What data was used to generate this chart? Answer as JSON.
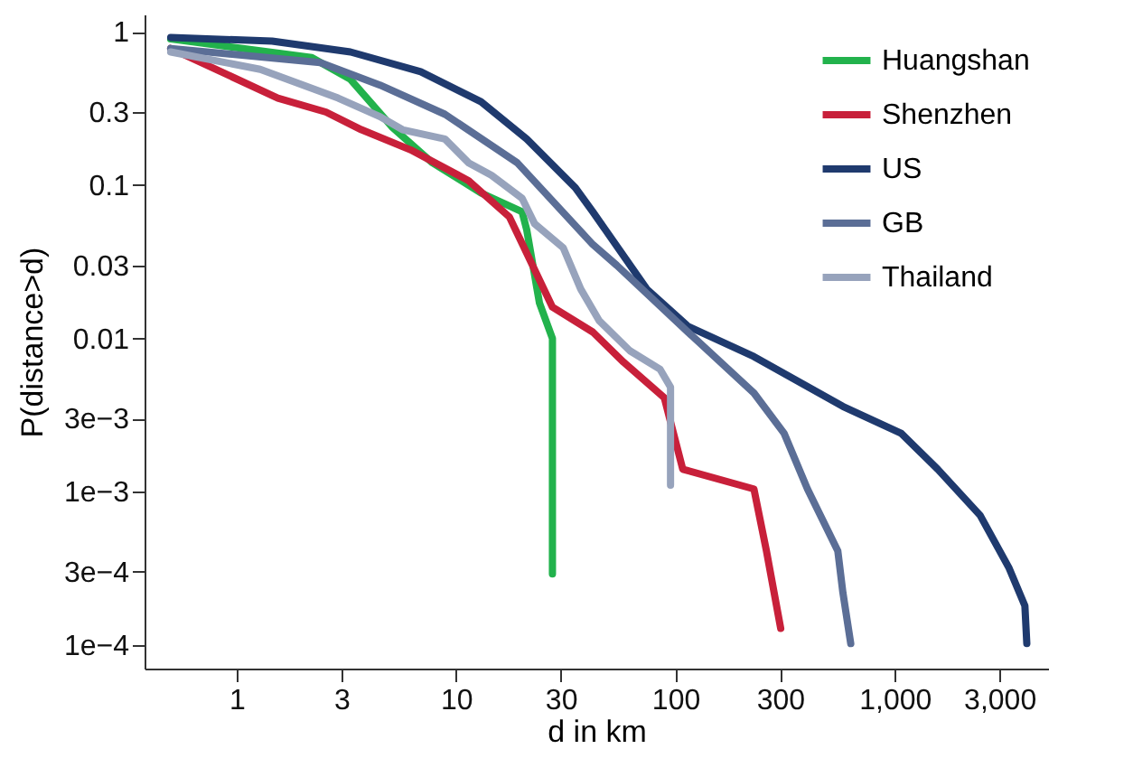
{
  "chart_data": {
    "type": "line",
    "xlabel": "d in km",
    "ylabel": "P(distance>d)",
    "log": "xy",
    "grid": false,
    "legend": "top right",
    "line_style": "solid",
    "xlim": [
      0.38,
      5000
    ],
    "ylim": [
      7e-05,
      1.3
    ],
    "xticks": [
      1,
      3,
      10,
      30,
      100,
      300,
      {
        "value": 1000,
        "label": "1,000"
      },
      {
        "value": 3000,
        "label": "3,000"
      }
    ],
    "yticks": [
      1,
      0.3,
      0.1,
      0.03,
      0.01,
      {
        "value": 0.003,
        "label": "3e−3"
      },
      {
        "value": 0.001,
        "label": "1e−3"
      },
      {
        "value": 0.0003,
        "label": "3e−4"
      },
      {
        "value": 0.0001,
        "label": "1e−4"
      }
    ],
    "series": [
      {
        "name": "Huangshan",
        "color": "#22b24c",
        "x": [
          0.5,
          2.2,
          3.3,
          5.1,
          7.8,
          13,
          20,
          21,
          24,
          27.5,
          27.5
        ],
        "values": [
          0.9,
          0.68,
          0.49,
          0.24,
          0.14,
          0.089,
          0.067,
          0.051,
          0.017,
          0.01,
          0.00029
        ]
      },
      {
        "name": "Shenzhen",
        "color": "#c8203a",
        "x": [
          0.5,
          1.54,
          2.55,
          3.7,
          6.2,
          11.4,
          17.5,
          21,
          27.5,
          42,
          58,
          89,
          108,
          228,
          260,
          302
        ],
        "values": [
          0.78,
          0.37,
          0.3,
          0.23,
          0.17,
          0.107,
          0.062,
          0.036,
          0.016,
          0.011,
          0.007,
          0.0041,
          0.0014,
          0.00104,
          0.00041,
          0.000128
        ]
      },
      {
        "name": "US",
        "color": "#1f3a6e",
        "x": [
          0.5,
          1.45,
          3.3,
          6.9,
          13,
          21,
          35,
          42,
          48,
          74,
          114,
          228,
          580,
          1070,
          1570,
          2450,
          3310,
          3920,
          4000
        ],
        "values": [
          0.92,
          0.87,
          0.74,
          0.55,
          0.35,
          0.2,
          0.096,
          0.067,
          0.051,
          0.021,
          0.012,
          0.0076,
          0.0036,
          0.0024,
          0.0014,
          0.0007,
          0.00032,
          0.00018,
          0.000102
        ]
      },
      {
        "name": "GB",
        "color": "#5b6e96",
        "x": [
          0.5,
          2.4,
          4.5,
          8.9,
          19,
          42,
          54,
          114,
          228,
          313,
          400,
          550,
          580,
          630
        ],
        "values": [
          0.78,
          0.63,
          0.45,
          0.29,
          0.14,
          0.041,
          0.03,
          0.011,
          0.0044,
          0.0024,
          0.00104,
          0.00041,
          0.00022,
          0.000102
        ]
      },
      {
        "name": "Thailand",
        "color": "#97a3bc",
        "x": [
          0.5,
          1.28,
          2.9,
          4.5,
          5.7,
          8.9,
          11.4,
          14.5,
          20,
          22.8,
          30.8,
          37,
          45,
          62,
          85,
          95,
          95
        ],
        "values": [
          0.74,
          0.57,
          0.37,
          0.28,
          0.23,
          0.2,
          0.14,
          0.116,
          0.082,
          0.056,
          0.039,
          0.021,
          0.013,
          0.0083,
          0.0063,
          0.0048,
          0.0011
        ]
      }
    ]
  }
}
